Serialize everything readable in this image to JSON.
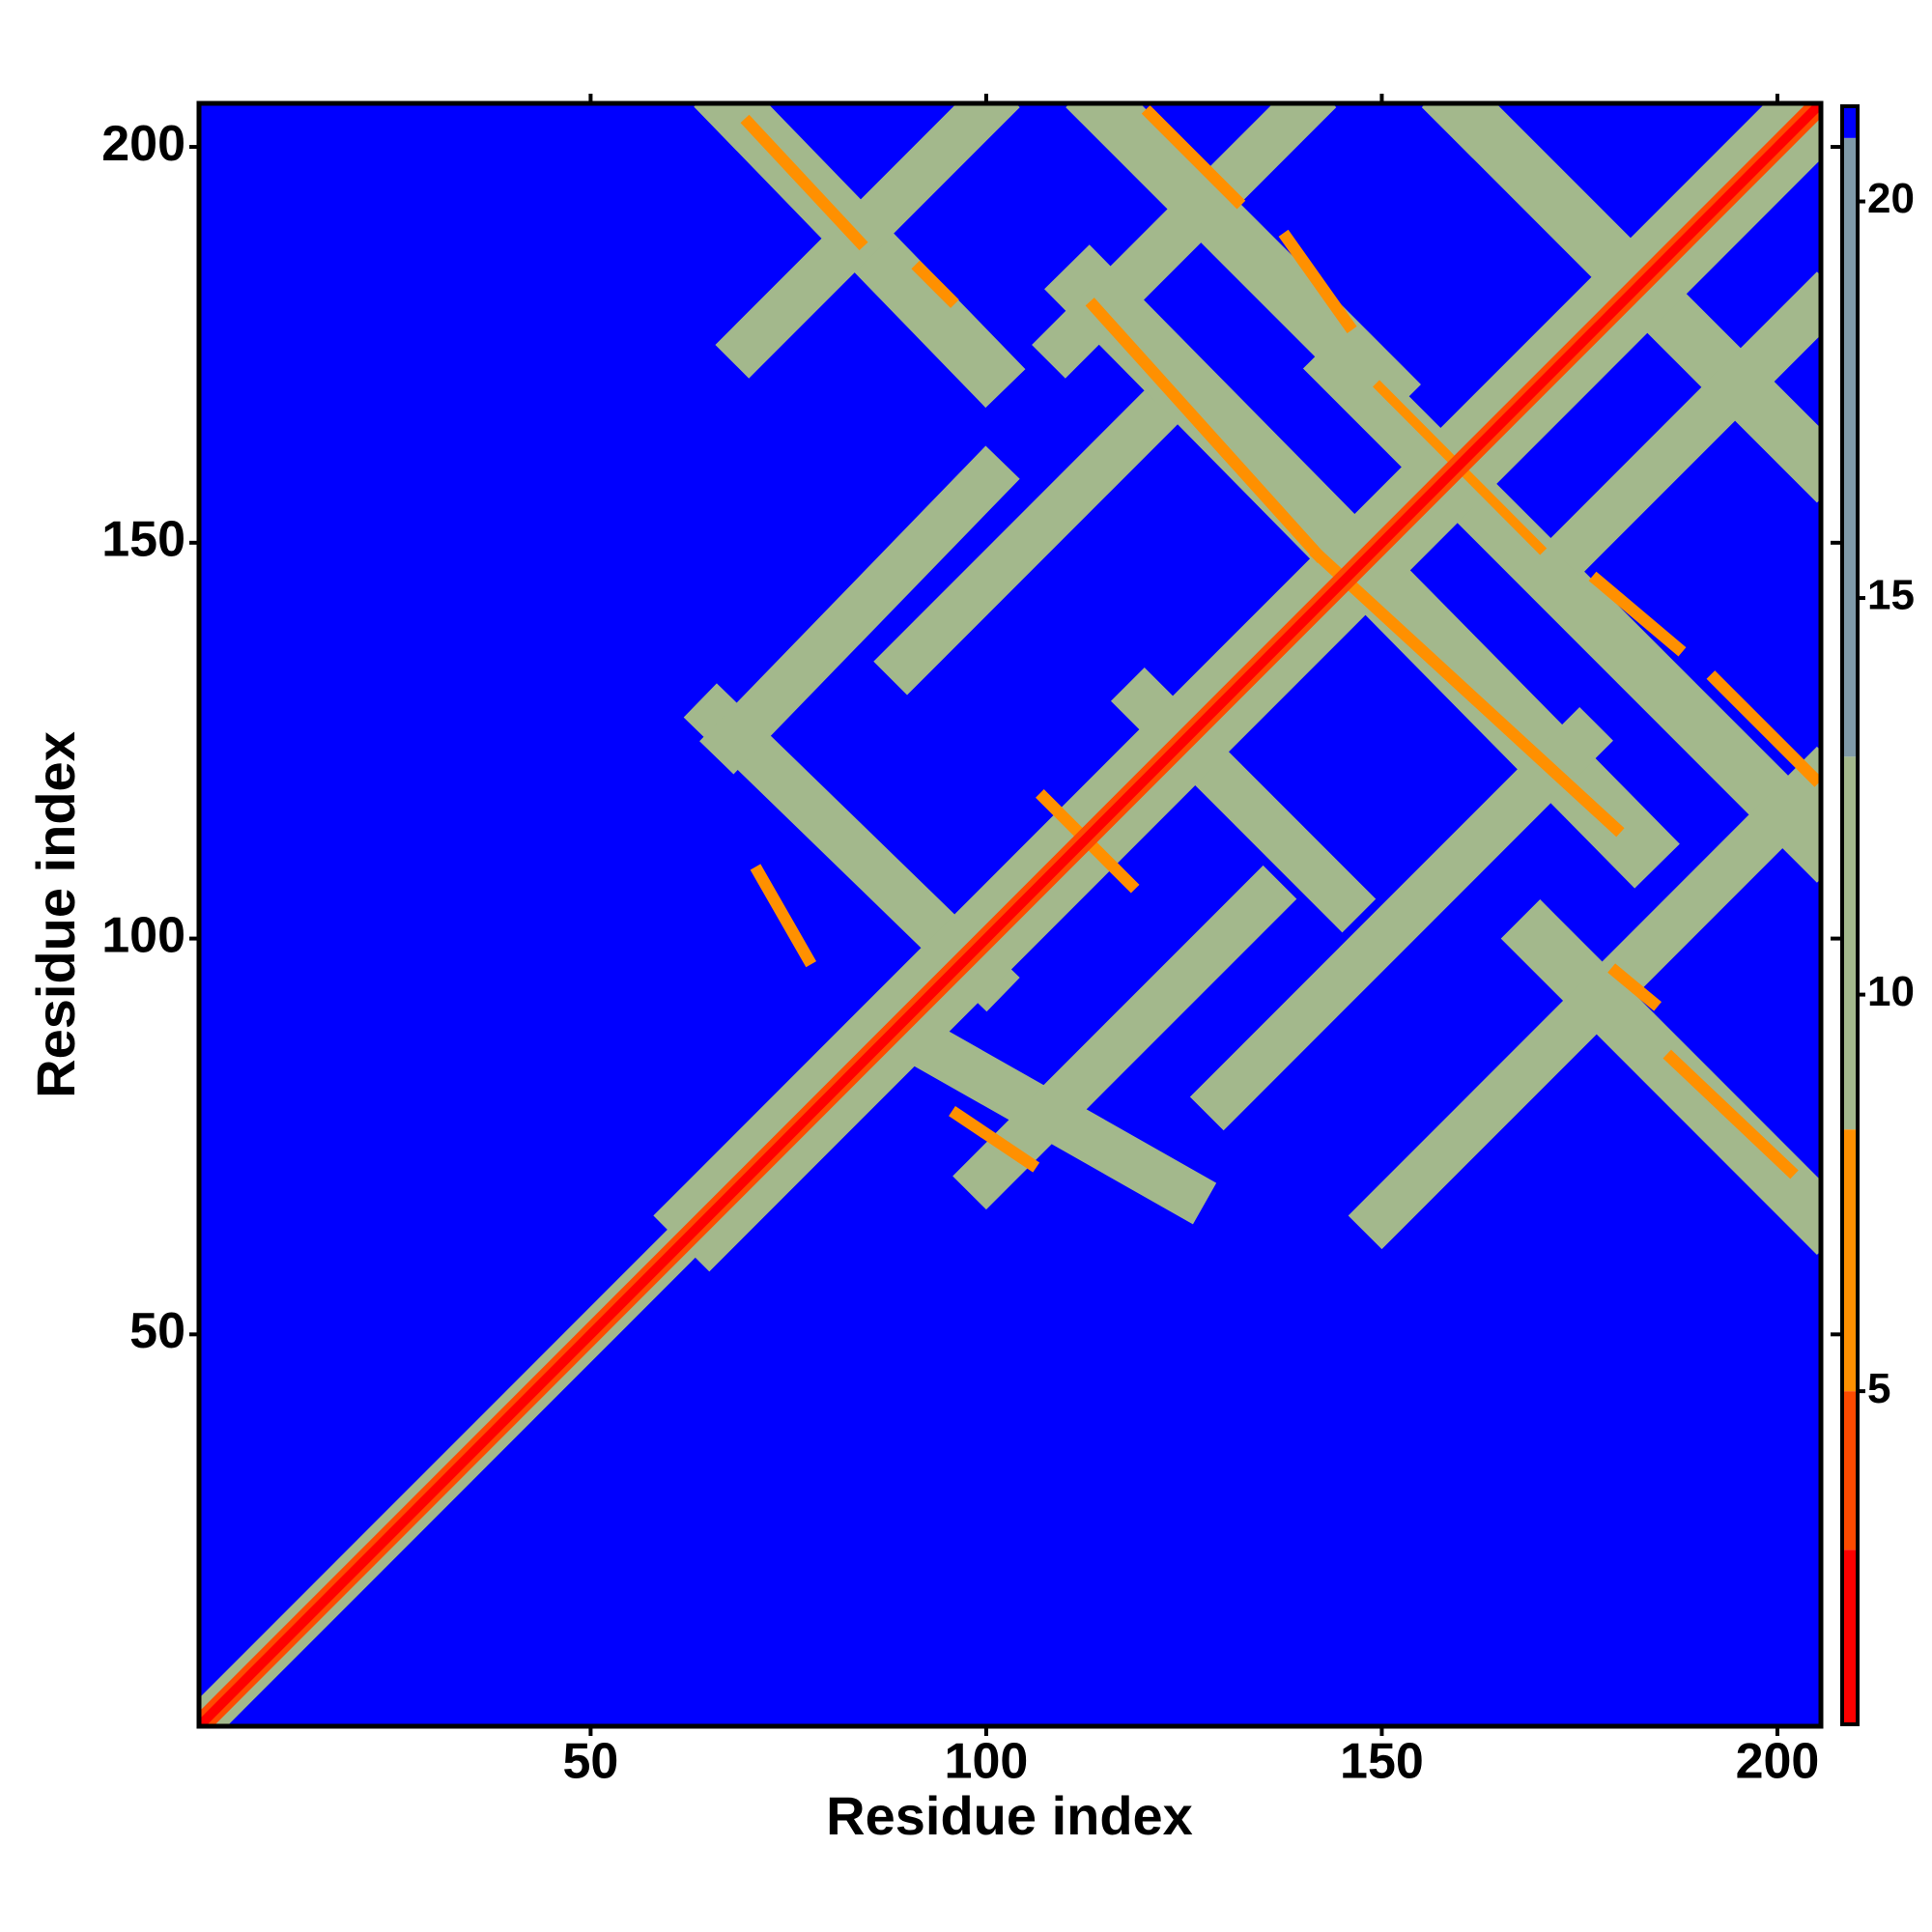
{
  "chart_data": {
    "type": "heatmap",
    "x_label": "Residue index",
    "y_label": "Residue index",
    "xlim": [
      0.5,
      205.5
    ],
    "ylim": [
      0.5,
      205.5
    ],
    "xticks": [
      50,
      100,
      150,
      200
    ],
    "yticks": [
      50,
      100,
      150,
      200
    ],
    "colorbar": {
      "lim": [
        0.8,
        21.2
      ],
      "ticks": [
        5,
        10,
        15,
        20
      ],
      "levels": [
        0.8,
        3,
        5,
        8.3,
        13,
        20.8,
        21.2
      ],
      "colors": [
        "#ff0000",
        "#ff4a00",
        "#ff9000",
        "#a3b88c",
        "#7f99a8",
        "#0000ff"
      ]
    },
    "background": 21,
    "segments": [
      {
        "x": [
          68,
          100
        ],
        "y": [
          205,
          172
        ],
        "width": 7,
        "value": 12
      },
      {
        "x": [
          115,
          150
        ],
        "y": [
          205,
          170
        ],
        "width": 7,
        "value": 12
      },
      {
        "x": [
          113,
          182
        ],
        "y": [
          182,
          112
        ],
        "width": 8,
        "value": 12
      },
      {
        "x": [
          160,
          205
        ],
        "y": [
          205,
          160
        ],
        "width": 7,
        "value": 12
      },
      {
        "x": [
          145,
          205
        ],
        "y": [
          172,
          112
        ],
        "width": 7,
        "value": 12
      },
      {
        "x": [
          66,
          100
        ],
        "y": [
          128,
          95
        ],
        "width": 6,
        "value": 12
      },
      {
        "x": [
          95,
          125
        ],
        "y": [
          85,
          68
        ],
        "width": 6,
        "value": 12
      },
      {
        "x": [
          170,
          205
        ],
        "y": [
          100,
          65
        ],
        "width": 7,
        "value": 12
      },
      {
        "x": [
          120,
          145
        ],
        "y": [
          130,
          105
        ],
        "width": 6,
        "value": 12
      },
      {
        "x": [
          68,
          100
        ],
        "y": [
          125,
          158
        ],
        "width": 6,
        "value": 12
      },
      {
        "x": [
          70,
          100
        ],
        "y": [
          175,
          205
        ],
        "width": 6,
        "value": 12
      },
      {
        "x": [
          100,
          135
        ],
        "y": [
          70,
          105
        ],
        "width": 6,
        "value": 12
      },
      {
        "x": [
          150,
          205
        ],
        "y": [
          65,
          120
        ],
        "width": 6,
        "value": 12
      },
      {
        "x": [
          130,
          175
        ],
        "y": [
          80,
          125
        ],
        "width": 6,
        "value": 12
      },
      {
        "x": [
          90,
          120
        ],
        "y": [
          135,
          165
        ],
        "width": 6,
        "value": 12
      },
      {
        "x": [
          175,
          205
        ],
        "y": [
          150,
          180
        ],
        "width": 6,
        "value": 12
      },
      {
        "x": [
          110,
          140
        ],
        "y": [
          175,
          205
        ],
        "width": 6,
        "value": 12
      },
      {
        "x": [
          1,
          65
        ],
        "y": [
          1,
          65
        ],
        "width": 5,
        "value": 12
      },
      {
        "x": [
          65,
          205
        ],
        "y": [
          65,
          205
        ],
        "width": 10,
        "value": 12
      },
      {
        "x": [
          70,
          84
        ],
        "y": [
          203,
          188
        ],
        "width": 1.5,
        "value": 6
      },
      {
        "x": [
          91.6,
          95.5
        ],
        "y": [
          184.6,
          180.7
        ],
        "width": 1.5,
        "value": 6
      },
      {
        "x": [
          120.7,
          131.7
        ],
        "y": [
          204.2,
          193.2
        ],
        "width": 1.5,
        "value": 6
      },
      {
        "x": [
          138,
          145.8
        ],
        "y": [
          188.5,
          177.5
        ],
        "width": 1.5,
        "value": 6
      },
      {
        "x": [
          113.6,
          141.9
        ],
        "y": [
          179.9,
          148.5
        ],
        "width": 1.5,
        "value": 6
      },
      {
        "x": [
          141.9,
          179.6
        ],
        "y": [
          148.5,
          113.9
        ],
        "width": 1.5,
        "value": 6
      },
      {
        "x": [
          149.7,
          170
        ],
        "y": [
          169.7,
          149.3
        ],
        "width": 1.2,
        "value": 6
      },
      {
        "x": [
          177.2,
          187.4
        ],
        "y": [
          145.3,
          136.7
        ],
        "width": 1.5,
        "value": 6
      },
      {
        "x": [
          192.1,
          204.7
        ],
        "y": [
          132.8,
          120.2
        ],
        "width": 1.5,
        "value": 6
      },
      {
        "x": [
          179.6,
          184.3
        ],
        "y": [
          95.8,
          91.9
        ],
        "width": 1.5,
        "value": 6
      },
      {
        "x": [
          186.6,
          201.6
        ],
        "y": [
          84.9,
          70.7
        ],
        "width": 1.5,
        "value": 6
      },
      {
        "x": [
          96.3,
          105.7
        ],
        "y": [
          77.8,
          71.5
        ],
        "width": 1.5,
        "value": 6
      },
      {
        "x": [
          71.2,
          77.5
        ],
        "y": [
          108.4,
          97.4
        ],
        "width": 1.5,
        "value": 6
      },
      {
        "x": [
          107.3,
          118.3
        ],
        "y": [
          117.8,
          106.8
        ],
        "width": 1.5,
        "value": 6
      },
      {
        "x": [
          1,
          205
        ],
        "y": [
          1,
          205
        ],
        "width": 2.6,
        "value": 4
      },
      {
        "x": [
          1,
          205
        ],
        "y": [
          1,
          205
        ],
        "width": 1.2,
        "value": 1
      }
    ]
  }
}
